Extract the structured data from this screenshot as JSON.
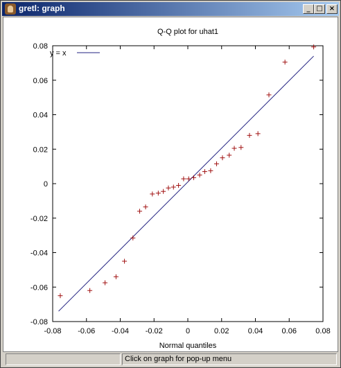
{
  "window": {
    "title": "gretl: graph",
    "minimize_glyph": "_",
    "maximize_glyph": "□",
    "close_glyph": "×",
    "icon": "gretl-app-icon"
  },
  "statusbar": {
    "left_text": "",
    "message": "Click on graph for pop-up menu"
  },
  "colors": {
    "points": "#a01010",
    "reference_line": "#202080"
  },
  "chart_data": {
    "type": "scatter",
    "title": "Q-Q plot for uhat1",
    "xlabel": "Normal quantiles",
    "ylabel": "",
    "xlim": [
      -0.08,
      0.08
    ],
    "ylim": [
      -0.08,
      0.08
    ],
    "xticks": [
      "-0.08",
      "-0.06",
      "-0.04",
      "-0.02",
      "0",
      "0.02",
      "0.04",
      "0.06",
      "0.08"
    ],
    "yticks": [
      "-0.08",
      "-0.06",
      "-0.04",
      "-0.02",
      "0",
      "0.02",
      "0.04",
      "0.06",
      "0.08"
    ],
    "grid": false,
    "legend": {
      "placement": "top-left",
      "label": "y = x"
    },
    "reference_line": {
      "from": [
        -0.0765,
        -0.074
      ],
      "to": [
        0.0745,
        0.074
      ]
    },
    "points": [
      [
        -0.0755,
        -0.065
      ],
      [
        -0.058,
        -0.062
      ],
      [
        -0.049,
        -0.0575
      ],
      [
        -0.0425,
        -0.054
      ],
      [
        -0.0375,
        -0.045
      ],
      [
        -0.0325,
        -0.0315
      ],
      [
        -0.0285,
        -0.016
      ],
      [
        -0.025,
        -0.0135
      ],
      [
        -0.021,
        -0.006
      ],
      [
        -0.0175,
        -0.0055
      ],
      [
        -0.0145,
        -0.0045
      ],
      [
        -0.0115,
        -0.0025
      ],
      [
        -0.0085,
        -0.002
      ],
      [
        -0.0055,
        -0.001
      ],
      [
        -0.0025,
        0.0028
      ],
      [
        0.0005,
        0.0028
      ],
      [
        0.0035,
        0.0035
      ],
      [
        0.007,
        0.005
      ],
      [
        0.01,
        0.007
      ],
      [
        0.0135,
        0.0075
      ],
      [
        0.017,
        0.0115
      ],
      [
        0.0205,
        0.015
      ],
      [
        0.0245,
        0.0165
      ],
      [
        0.0275,
        0.0205
      ],
      [
        0.0315,
        0.021
      ],
      [
        0.0365,
        0.028
      ],
      [
        0.0415,
        0.029
      ],
      [
        0.048,
        0.0515
      ],
      [
        0.0575,
        0.0705
      ],
      [
        0.0745,
        0.0793
      ]
    ]
  }
}
